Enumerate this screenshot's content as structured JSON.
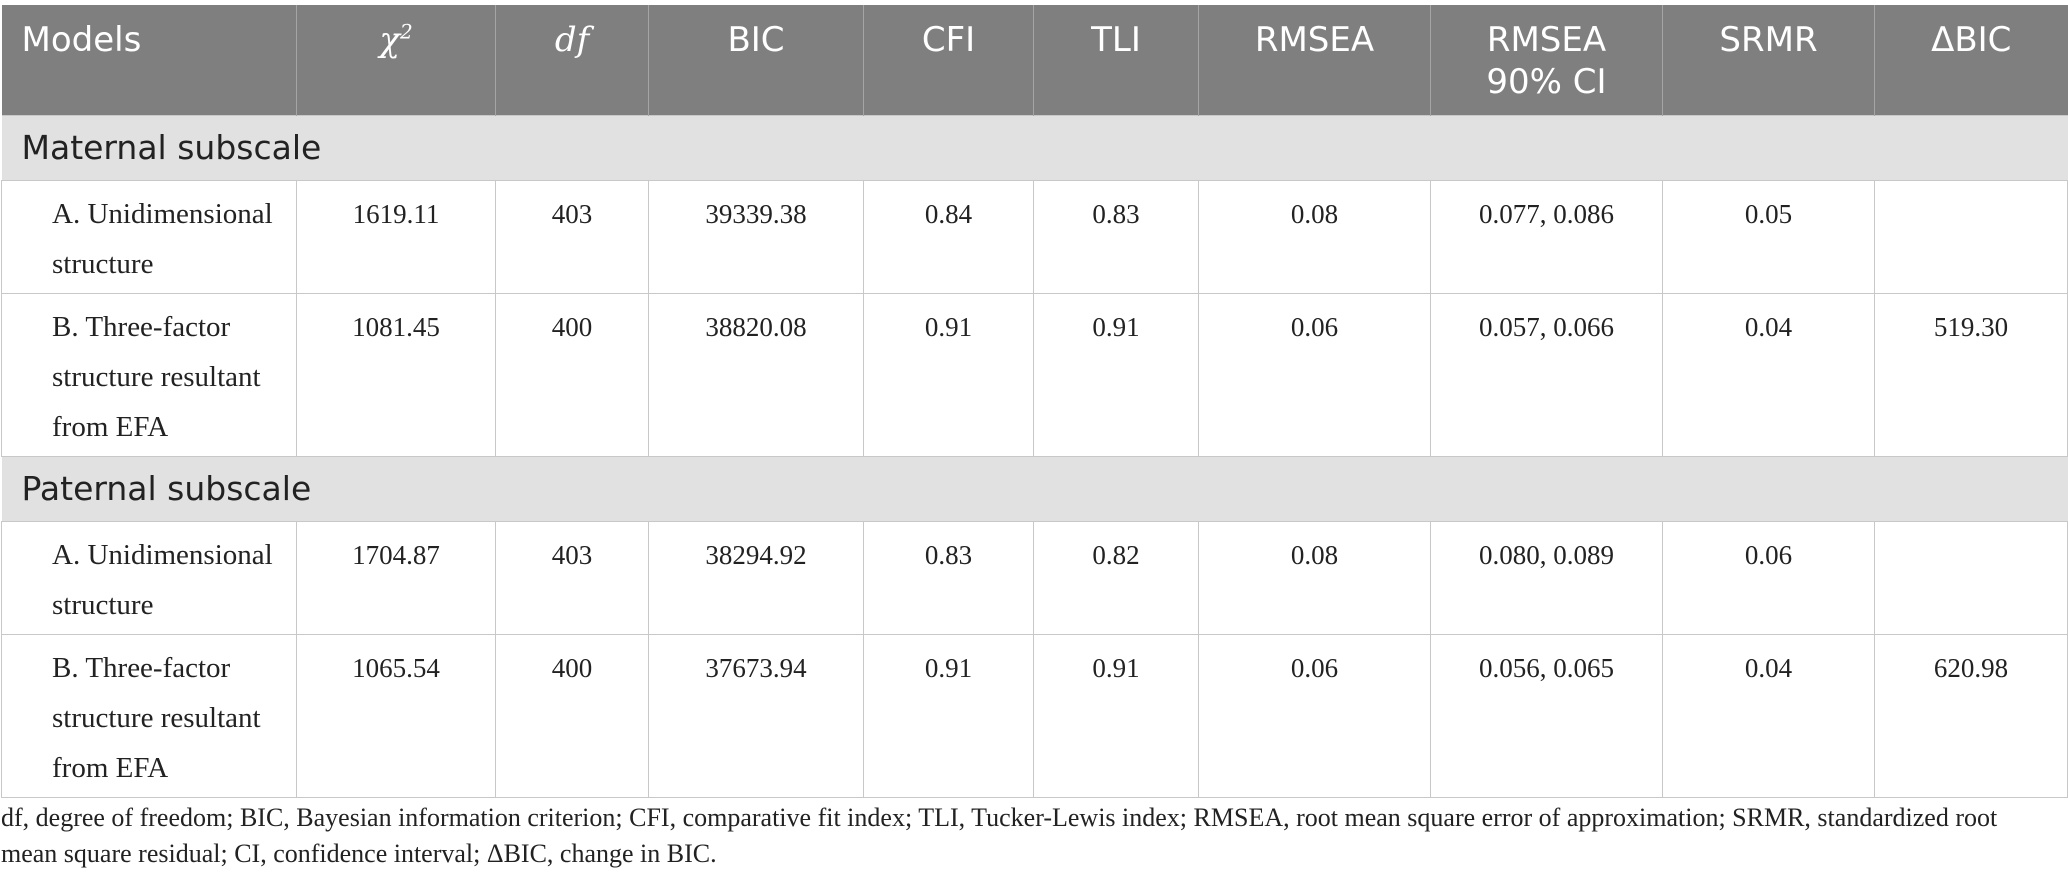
{
  "table": {
    "headers": {
      "models": "Models",
      "chi2_base": "χ",
      "chi2_sup": "2",
      "df": "df",
      "bic": "BIC",
      "cfi": "CFI",
      "tli": "TLI",
      "rmsea": "RMSEA",
      "rmsea_ci_line1": "RMSEA",
      "rmsea_ci_line2": "90% CI",
      "srmr": "SRMR",
      "delta_bic": "ΔBIC"
    },
    "sections": [
      {
        "title": "Maternal subscale",
        "rows": [
          {
            "model_line1": "A. Unidimensional",
            "model_line2": "structure",
            "model_line3": "",
            "chi2": "1619.11",
            "df": "403",
            "bic": "39339.38",
            "cfi": "0.84",
            "tli": "0.83",
            "rmsea": "0.08",
            "rmsea_ci": "0.077, 0.086",
            "srmr": "0.05",
            "delta_bic": ""
          },
          {
            "model_line1": "B. Three-factor",
            "model_line2": "structure resultant",
            "model_line3": "from EFA",
            "chi2": "1081.45",
            "df": "400",
            "bic": "38820.08",
            "cfi": "0.91",
            "tli": "0.91",
            "rmsea": "0.06",
            "rmsea_ci": "0.057, 0.066",
            "srmr": "0.04",
            "delta_bic": "519.30"
          }
        ]
      },
      {
        "title": "Paternal subscale",
        "rows": [
          {
            "model_line1": "A. Unidimensional",
            "model_line2": "structure",
            "model_line3": "",
            "chi2": "1704.87",
            "df": "403",
            "bic": "38294.92",
            "cfi": "0.83",
            "tli": "0.82",
            "rmsea": "0.08",
            "rmsea_ci": "0.080, 0.089",
            "srmr": "0.06",
            "delta_bic": ""
          },
          {
            "model_line1": "B. Three-factor",
            "model_line2": "structure resultant",
            "model_line3": "from EFA",
            "chi2": "1065.54",
            "df": "400",
            "bic": "37673.94",
            "cfi": "0.91",
            "tli": "0.91",
            "rmsea": "0.06",
            "rmsea_ci": "0.056, 0.065",
            "srmr": "0.04",
            "delta_bic": "620.98"
          }
        ]
      }
    ]
  },
  "footnote": "df, degree of freedom; BIC, Bayesian information criterion; CFI, comparative fit index; TLI, Tucker-Lewis index; RMSEA, root mean square error of approximation; SRMR, standardized root mean square residual; CI, confidence interval; ΔBIC, change in BIC."
}
